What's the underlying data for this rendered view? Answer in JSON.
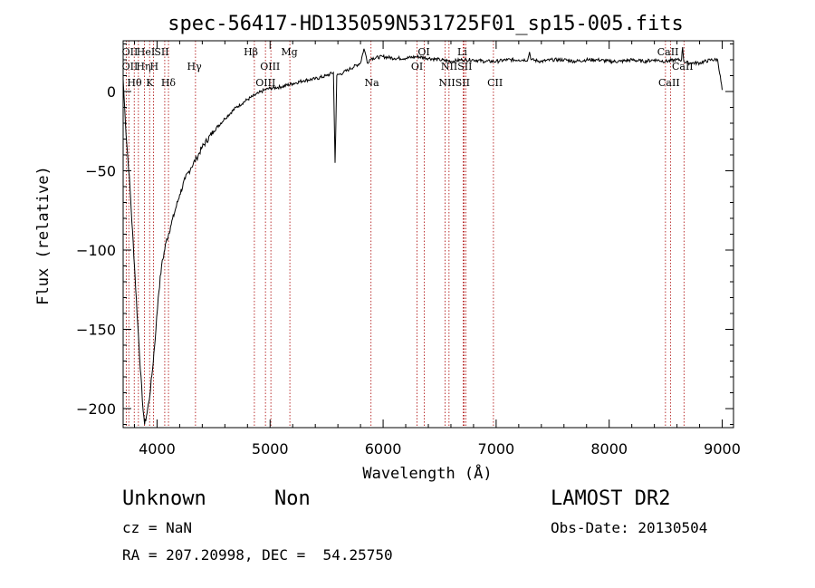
{
  "chart_data": {
    "type": "line",
    "title": "spec-56417-HD135059N531725F01_sp15-005.fits",
    "xlabel": "Wavelength (Å)",
    "ylabel": "Flux (relative)",
    "xlim": [
      3700,
      9100
    ],
    "ylim": [
      -212,
      32
    ],
    "xticks": [
      4000,
      5000,
      6000,
      7000,
      8000,
      9000
    ],
    "yticks": [
      -200,
      -150,
      -100,
      -50,
      0
    ],
    "xtick_labels": [
      "4000",
      "5000",
      "6000",
      "7000",
      "8000",
      "9000"
    ],
    "ytick_labels": [
      "−200",
      "−150",
      "−100",
      "−50",
      "0"
    ],
    "series": [
      {
        "x": [
          3700,
          3720,
          3760,
          3800,
          3840,
          3870,
          3890,
          3905,
          3930,
          3960,
          3990,
          4010,
          4040,
          4080,
          4120,
          4160,
          4200,
          4250,
          4300,
          4350,
          4400,
          4500,
          4600,
          4700,
          4800,
          4900,
          4950,
          5000,
          5100,
          5200,
          5300,
          5400,
          5500,
          5560,
          5575,
          5590,
          5650,
          5700,
          5800,
          5830,
          5850,
          5860,
          5880,
          5900,
          6000,
          6100,
          6200,
          6300,
          6400,
          6500,
          6600,
          6700,
          6800,
          6900,
          7000,
          7100,
          7200,
          7280,
          7295,
          7310,
          7400,
          7500,
          7600,
          7700,
          7800,
          7900,
          8000,
          8100,
          8200,
          8300,
          8400,
          8500,
          8600,
          8640,
          8650,
          8660,
          8700,
          8800,
          8900,
          8960,
          9000
        ],
        "y": [
          8,
          -20,
          -60,
          -110,
          -160,
          -195,
          -210,
          -205,
          -195,
          -175,
          -150,
          -130,
          -110,
          -95,
          -85,
          -75,
          -65,
          -55,
          -48,
          -42,
          -35,
          -25,
          -17,
          -10,
          -5,
          -1,
          1,
          2,
          3,
          5,
          7,
          8,
          10,
          12,
          -45,
          10,
          12,
          14,
          18,
          27,
          22,
          18,
          20,
          21,
          22,
          21,
          21,
          22,
          21,
          20,
          19,
          20,
          20,
          19,
          19,
          20,
          20,
          20,
          25,
          20,
          19,
          20,
          20,
          19,
          20,
          20,
          19,
          19,
          20,
          19,
          20,
          19,
          20,
          20,
          28,
          19,
          18,
          18,
          20,
          20,
          1
        ]
      }
    ],
    "line_markers": [
      {
        "x": 3727,
        "labels": [
          "OII"
        ]
      },
      {
        "x": 3750,
        "labels": [
          "OII"
        ]
      },
      {
        "x": 3798,
        "labels": [
          "Hθ"
        ]
      },
      {
        "x": 3835,
        "labels": [
          "Hη"
        ]
      },
      {
        "x": 3889,
        "labels": [
          "HeI"
        ]
      },
      {
        "x": 3934,
        "labels": [
          "K"
        ]
      },
      {
        "x": 3969,
        "labels": [
          "H"
        ]
      },
      {
        "x": 4068,
        "labels": [
          "SII"
        ]
      },
      {
        "x": 4101,
        "labels": [
          "Hδ"
        ]
      },
      {
        "x": 4340,
        "labels": [
          "Hγ"
        ]
      },
      {
        "x": 4861,
        "labels": [
          "Hβ"
        ]
      },
      {
        "x": 4959,
        "labels": [
          "OIII"
        ]
      },
      {
        "x": 5007,
        "labels": [
          "OIII"
        ]
      },
      {
        "x": 5175,
        "labels": [
          "Mg"
        ]
      },
      {
        "x": 5893,
        "labels": [
          "Na"
        ]
      },
      {
        "x": 6300,
        "labels": [
          "OI"
        ]
      },
      {
        "x": 6364,
        "labels": [
          "OI"
        ]
      },
      {
        "x": 6548,
        "labels": [
          "NII"
        ]
      },
      {
        "x": 6583,
        "labels": [
          "NII"
        ]
      },
      {
        "x": 6708,
        "labels": [
          "Li"
        ]
      },
      {
        "x": 6716,
        "labels": [
          "SII"
        ]
      },
      {
        "x": 6731,
        "labels": [
          "SII"
        ]
      },
      {
        "x": 6976,
        "labels": [
          "CII"
        ]
      },
      {
        "x": 8498,
        "labels": [
          "CaII"
        ]
      },
      {
        "x": 8542,
        "labels": [
          "CaII"
        ]
      },
      {
        "x": 8662,
        "labels": [
          "CaII"
        ]
      }
    ]
  },
  "marker_text": [
    {
      "text": "OII",
      "x": 3760,
      "row": 0
    },
    {
      "text": "HeI",
      "x": 3900,
      "row": 0
    },
    {
      "text": "SII",
      "x": 4040,
      "row": 0
    },
    {
      "text": "OII",
      "x": 3760,
      "row": 1
    },
    {
      "text": "Hη",
      "x": 3880,
      "row": 1
    },
    {
      "text": "H",
      "x": 3975,
      "row": 1
    },
    {
      "text": "Hθ",
      "x": 3800,
      "row": 2
    },
    {
      "text": "K",
      "x": 3935,
      "row": 2
    },
    {
      "text": "Hδ",
      "x": 4100,
      "row": 2
    },
    {
      "text": "Hγ",
      "x": 4330,
      "row": 1
    },
    {
      "text": "Hβ",
      "x": 4830,
      "row": 0
    },
    {
      "text": "Mg",
      "x": 5170,
      "row": 0
    },
    {
      "text": "OIII",
      "x": 5000,
      "row": 1
    },
    {
      "text": "OIII",
      "x": 4960,
      "row": 2
    },
    {
      "text": "Na",
      "x": 5900,
      "row": 2
    },
    {
      "text": "OI",
      "x": 6360,
      "row": 0
    },
    {
      "text": "OI",
      "x": 6300,
      "row": 1
    },
    {
      "text": "Li",
      "x": 6700,
      "row": 0
    },
    {
      "text": "NIISII",
      "x": 6650,
      "row": 1
    },
    {
      "text": "NIISII",
      "x": 6630,
      "row": 2
    },
    {
      "text": "CII",
      "x": 6990,
      "row": 2
    },
    {
      "text": "CaII",
      "x": 8520,
      "row": 0
    },
    {
      "text": "CaII",
      "x": 8650,
      "row": 1
    },
    {
      "text": "CaII",
      "x": 8530,
      "row": 2
    }
  ],
  "info": {
    "class_label": "Unknown",
    "subclass_label": "Non",
    "cz": "cz = NaN",
    "coords": "RA = 207.20998, DEC =  54.25750",
    "survey": "LAMOST DR2",
    "obs_date": "Obs-Date: 20130504"
  },
  "colors": {
    "spectrum": "#000000",
    "line_markers": "#aa0000",
    "axes": "#000000"
  }
}
